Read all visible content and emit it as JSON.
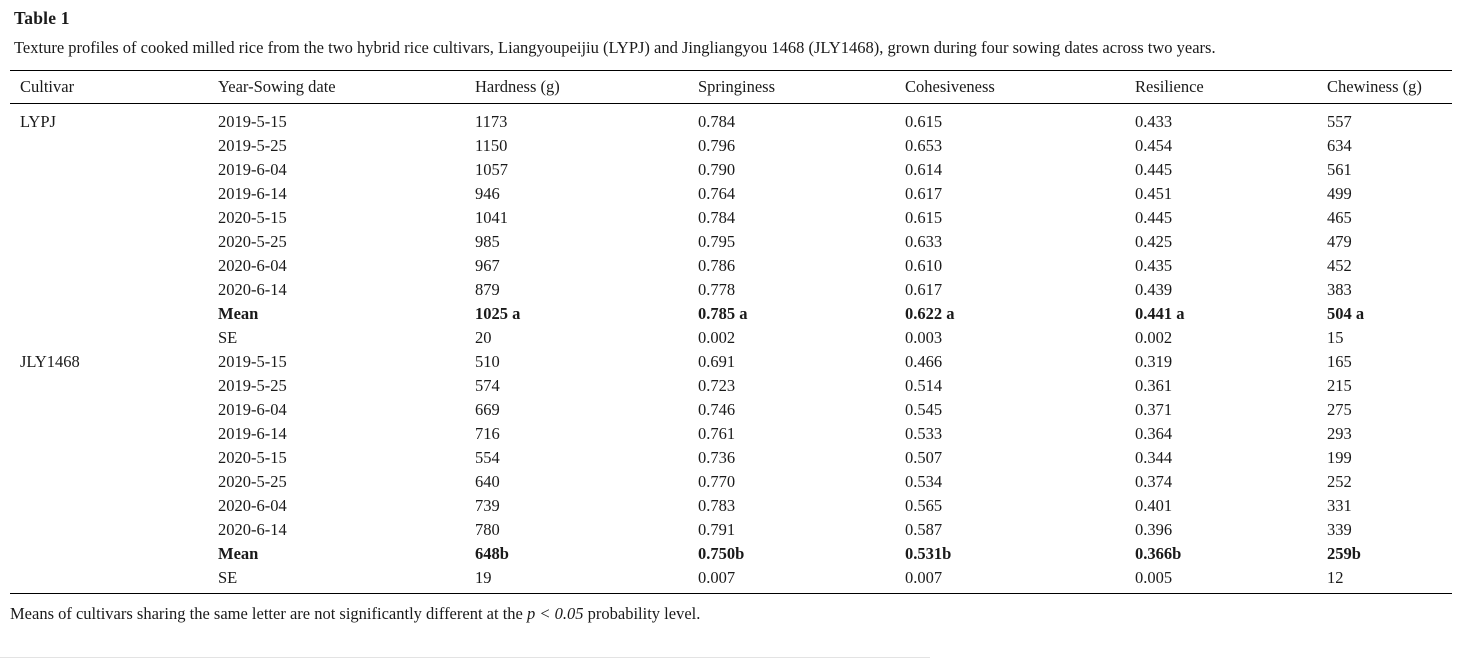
{
  "table": {
    "label": "Table 1",
    "caption": "Texture profiles of cooked milled rice from the two hybrid rice cultivars, Liangyoupeijiu (LYPJ) and Jingliangyou 1468 (JLY1468), grown during four sowing dates across two years.",
    "columns": [
      "Cultivar",
      "Year-Sowing date",
      "Hardness (g)",
      "Springiness",
      "Cohesiveness",
      "Resilience",
      "Chewiness (g)"
    ],
    "rows": [
      {
        "cells": [
          "LYPJ",
          "2019-5-15",
          "1173",
          "0.784",
          "0.615",
          "0.433",
          "557"
        ],
        "bold": false
      },
      {
        "cells": [
          "",
          "2019-5-25",
          "1150",
          "0.796",
          "0.653",
          "0.454",
          "634"
        ],
        "bold": false
      },
      {
        "cells": [
          "",
          "2019-6-04",
          "1057",
          "0.790",
          "0.614",
          "0.445",
          "561"
        ],
        "bold": false
      },
      {
        "cells": [
          "",
          "2019-6-14",
          "946",
          "0.764",
          "0.617",
          "0.451",
          "499"
        ],
        "bold": false
      },
      {
        "cells": [
          "",
          "2020-5-15",
          "1041",
          "0.784",
          "0.615",
          "0.445",
          "465"
        ],
        "bold": false
      },
      {
        "cells": [
          "",
          "2020-5-25",
          "985",
          "0.795",
          "0.633",
          "0.425",
          "479"
        ],
        "bold": false
      },
      {
        "cells": [
          "",
          "2020-6-04",
          "967",
          "0.786",
          "0.610",
          "0.435",
          "452"
        ],
        "bold": false
      },
      {
        "cells": [
          "",
          "2020-6-14",
          "879",
          "0.778",
          "0.617",
          "0.439",
          "383"
        ],
        "bold": false
      },
      {
        "cells": [
          "",
          "Mean",
          "1025 a",
          "0.785 a",
          "0.622 a",
          "0.441 a",
          "504 a"
        ],
        "bold": true
      },
      {
        "cells": [
          "",
          "SE",
          "20",
          "0.002",
          "0.003",
          "0.002",
          "15"
        ],
        "bold": false
      },
      {
        "cells": [
          "JLY1468",
          "2019-5-15",
          "510",
          "0.691",
          "0.466",
          "0.319",
          "165"
        ],
        "bold": false
      },
      {
        "cells": [
          "",
          "2019-5-25",
          "574",
          "0.723",
          "0.514",
          "0.361",
          "215"
        ],
        "bold": false
      },
      {
        "cells": [
          "",
          "2019-6-04",
          "669",
          "0.746",
          "0.545",
          "0.371",
          "275"
        ],
        "bold": false
      },
      {
        "cells": [
          "",
          "2019-6-14",
          "716",
          "0.761",
          "0.533",
          "0.364",
          "293"
        ],
        "bold": false
      },
      {
        "cells": [
          "",
          "2020-5-15",
          "554",
          "0.736",
          "0.507",
          "0.344",
          "199"
        ],
        "bold": false
      },
      {
        "cells": [
          "",
          "2020-5-25",
          "640",
          "0.770",
          "0.534",
          "0.374",
          "252"
        ],
        "bold": false
      },
      {
        "cells": [
          "",
          "2020-6-04",
          "739",
          "0.783",
          "0.565",
          "0.401",
          "331"
        ],
        "bold": false
      },
      {
        "cells": [
          "",
          "2020-6-14",
          "780",
          "0.791",
          "0.587",
          "0.396",
          "339"
        ],
        "bold": false
      },
      {
        "cells": [
          "",
          "Mean",
          "648b",
          "0.750b",
          "0.531b",
          "0.366b",
          "259b"
        ],
        "bold": true
      },
      {
        "cells": [
          "",
          "SE",
          "19",
          "0.007",
          "0.007",
          "0.005",
          "12"
        ],
        "bold": false
      }
    ],
    "footnote": {
      "prefix": "Means of cultivars sharing the same letter are not significantly different at the ",
      "italic": "p < 0.05",
      "suffix": " probability level."
    }
  }
}
